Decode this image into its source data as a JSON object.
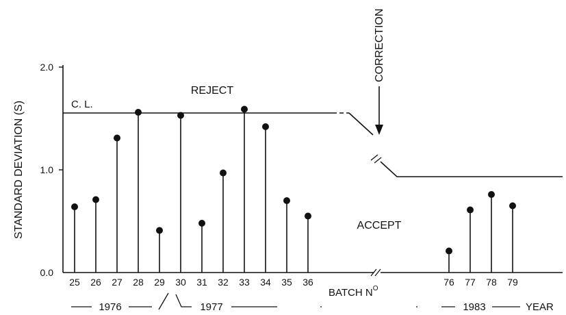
{
  "chart_data": {
    "type": "scatter",
    "style": "stem (lollipop) plot",
    "ylabel": "STANDARD DEVIATION (S)",
    "xlabel": "BATCH N",
    "xlabel_super": "O",
    "ylim": [
      0,
      2.0
    ],
    "y_ticks": [
      "0.0",
      "1.0",
      "2.0"
    ],
    "grid": false,
    "categories": [
      "25",
      "26",
      "27",
      "28",
      "29",
      "30",
      "31",
      "32",
      "33",
      "34",
      "35",
      "36",
      "76",
      "77",
      "78",
      "79"
    ],
    "values": [
      0.64,
      0.71,
      1.31,
      1.56,
      0.41,
      1.53,
      0.48,
      0.97,
      1.59,
      1.42,
      0.7,
      0.55,
      0.21,
      0.61,
      0.76,
      0.65
    ],
    "control_limit": {
      "label": "C. L.",
      "before": 1.35,
      "after": 0.92
    },
    "regions": {
      "reject": "REJECT",
      "accept": "ACCEPT"
    },
    "annotation": "CORRECTION",
    "year_labels": [
      "1976",
      "1977",
      "1983",
      "YEAR"
    ]
  }
}
